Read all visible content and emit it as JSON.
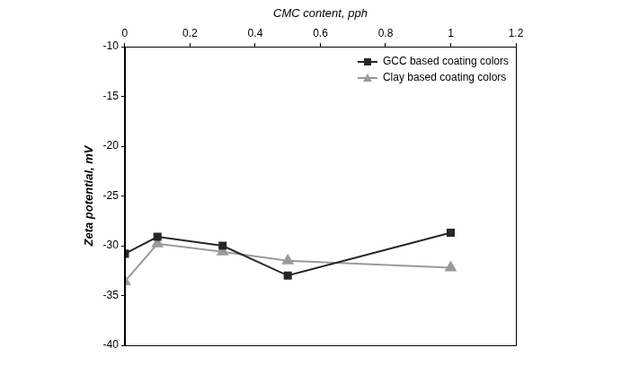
{
  "chart_data": {
    "type": "line",
    "x_label": "CMC content, pph",
    "y_label": "Zeta potential, mV",
    "x": [
      0,
      0.1,
      0.3,
      0.5,
      1
    ],
    "series": [
      {
        "name": "GCC based coating colors",
        "color": "#262626",
        "marker": "square",
        "values": [
          -30.8,
          -29.1,
          -30.0,
          -33.0,
          -28.7
        ]
      },
      {
        "name": "Clay based coating colors",
        "color": "#9a9a9a",
        "marker": "triangle",
        "values": [
          -33.6,
          -29.8,
          -30.6,
          -31.5,
          -32.2
        ]
      }
    ],
    "xlim": [
      0,
      1.2
    ],
    "xticks": [
      0,
      0.2,
      0.4,
      0.6,
      0.8,
      1,
      1.2
    ],
    "ylim": [
      -40,
      -10
    ],
    "yticks": [
      -40,
      -35,
      -30,
      -25,
      -20,
      -15,
      -10
    ],
    "grid": false,
    "legend": "upper right"
  }
}
